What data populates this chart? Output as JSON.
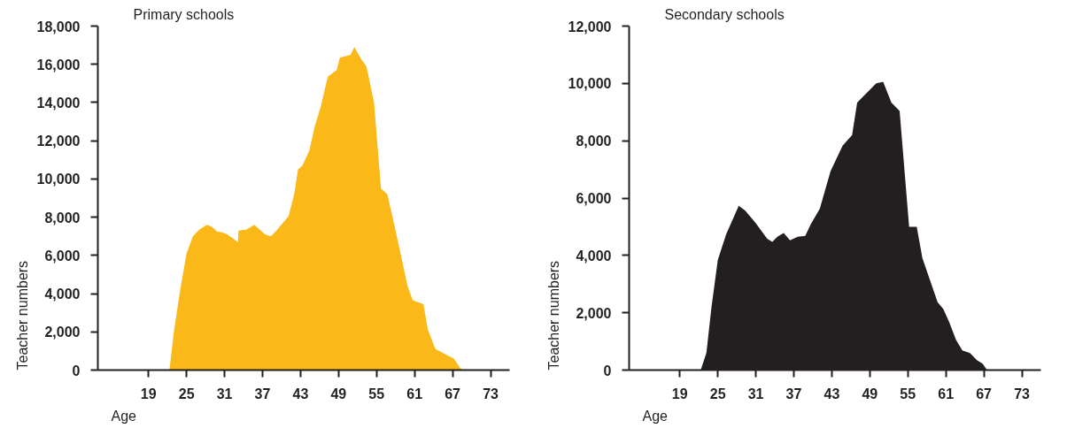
{
  "chart_data": [
    {
      "type": "area",
      "title": "Primary schools",
      "xlabel": "Age",
      "ylabel": "Teacher numbers",
      "color": "#fbb919",
      "grid": false,
      "x": [
        22.3,
        23,
        24,
        25,
        26,
        27,
        28.2,
        29,
        29.8,
        30.7,
        31.4,
        32.3,
        33.1,
        33.2,
        34.4,
        35.7,
        37.4,
        38.3,
        39.2,
        41.1,
        42,
        42.6,
        43.3,
        44.4,
        45.2,
        46.2,
        47.3,
        48.7,
        49.2,
        50.9,
        51.5,
        52.6,
        53.4,
        54.6,
        55.7,
        56.7,
        57.8,
        59.9,
        60.7,
        62.4,
        63.1,
        64.3,
        67.2,
        68.2,
        68.7
      ],
      "values": [
        0,
        2000,
        4200,
        6100,
        7000,
        7350,
        7600,
        7500,
        7250,
        7200,
        7100,
        6900,
        6700,
        7300,
        7350,
        7600,
        7100,
        7000,
        7300,
        8050,
        9200,
        10500,
        10700,
        11500,
        12700,
        13800,
        15350,
        15700,
        16350,
        16500,
        16900,
        16250,
        15900,
        14000,
        9500,
        9200,
        7600,
        4400,
        3650,
        3450,
        2100,
        1100,
        600,
        100,
        0
      ],
      "xlim": [
        11,
        76
      ],
      "ylim": [
        0,
        18000
      ],
      "xticks": [
        19,
        25,
        31,
        37,
        43,
        49,
        55,
        61,
        67,
        73
      ],
      "yticks": [
        0,
        {
          "value": 2000,
          "label": "2,000"
        },
        {
          "value": 4000,
          "label": "4,000"
        },
        {
          "value": 6000,
          "label": "6,000"
        },
        {
          "value": 8000,
          "label": "8,000"
        },
        {
          "value": 10000,
          "label": "10,000"
        },
        {
          "value": 12000,
          "label": "12,000"
        },
        {
          "value": 14000,
          "label": "14,000"
        },
        {
          "value": 16000,
          "label": "16,000"
        },
        {
          "value": 18000,
          "label": "18,000"
        }
      ]
    },
    {
      "type": "area",
      "title": "Secondary schools",
      "xlabel": "Age",
      "ylabel": "Teacher numbers",
      "color": "#231f20",
      "grid": false,
      "x": [
        22.3,
        23.2,
        24,
        25,
        26.3,
        28.3,
        29.3,
        30.9,
        32.8,
        33.6,
        34.4,
        35.4,
        36.4,
        37.6,
        38.8,
        39.7,
        41.1,
        42.8,
        44.7,
        46.2,
        47,
        50,
        51.1,
        52.4,
        53.7,
        55.2,
        56.4,
        57.3,
        59.7,
        60.6,
        61.5,
        62.6,
        63.6,
        64.8,
        65.9,
        66.8,
        67.5
      ],
      "values": [
        0,
        600,
        2200,
        3840,
        4730,
        5730,
        5570,
        5150,
        4580,
        4470,
        4650,
        4780,
        4530,
        4650,
        4680,
        5100,
        5630,
        6940,
        7830,
        8200,
        9330,
        10000,
        10060,
        9330,
        9040,
        5000,
        5000,
        3900,
        2370,
        2130,
        1690,
        1060,
        690,
        590,
        350,
        220,
        0
      ],
      "xlim": [
        11,
        76
      ],
      "ylim": [
        0,
        12000
      ],
      "xticks": [
        19,
        25,
        31,
        37,
        43,
        49,
        55,
        61,
        67,
        73
      ],
      "yticks": [
        0,
        {
          "value": 2000,
          "label": "2,000"
        },
        {
          "value": 4000,
          "label": "4,000"
        },
        {
          "value": 6000,
          "label": "6,000"
        },
        {
          "value": 8000,
          "label": "8,000"
        },
        {
          "value": 10000,
          "label": "10,000"
        },
        {
          "value": 12000,
          "label": "12,000"
        }
      ]
    }
  ]
}
